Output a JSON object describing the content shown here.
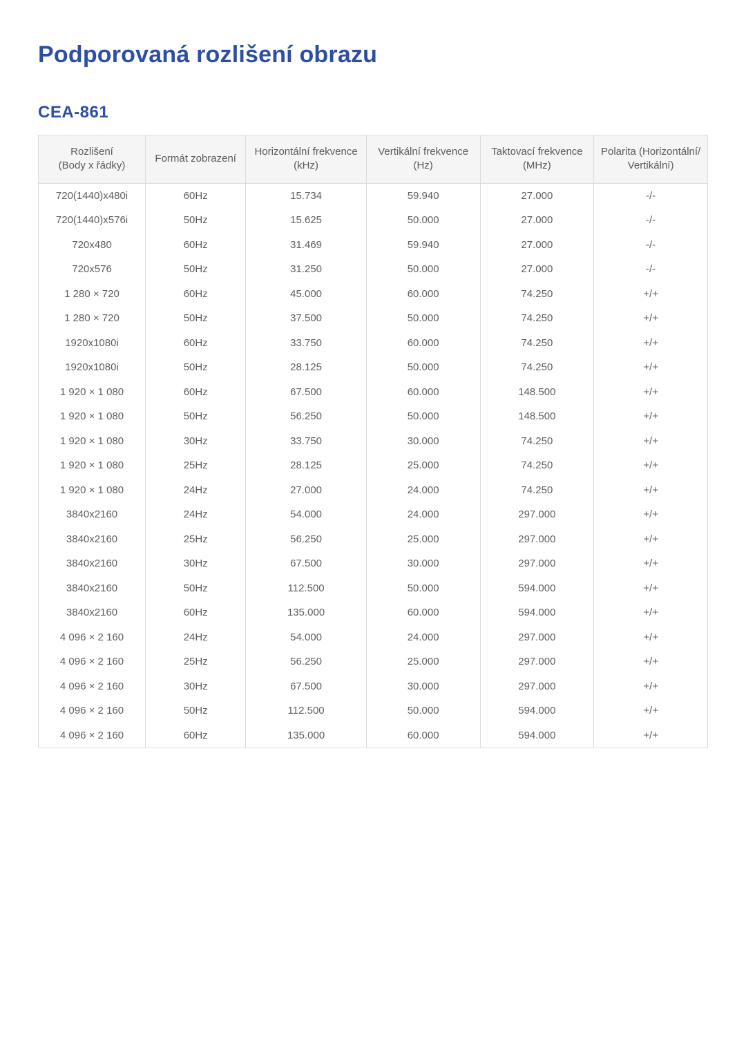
{
  "colors": {
    "heading": "#2d4fa3",
    "body_text": "#5f5f5f",
    "header_bg": "#f5f5f5",
    "border": "#dcdcdc",
    "page_bg": "#ffffff"
  },
  "typography": {
    "title_fontsize_pt": 26,
    "subtitle_fontsize_pt": 18,
    "table_fontsize_pt": 11,
    "font_family": "Arial"
  },
  "title": "Podporovaná rozlišení obrazu",
  "subtitle": "CEA-861",
  "table": {
    "type": "table",
    "column_widths_pct": [
      16,
      15,
      18,
      17,
      17,
      17
    ],
    "columns": [
      {
        "line1": "Rozlišení",
        "line2": "(Body x řádky)"
      },
      {
        "line1": "Formát zobrazení",
        "line2": ""
      },
      {
        "line1": "Horizontální frekvence",
        "line2": "(kHz)"
      },
      {
        "line1": "Vertikální frekvence",
        "line2": "(Hz)"
      },
      {
        "line1": "Taktovací frekvence",
        "line2": "(MHz)"
      },
      {
        "line1": "Polarita (Horizontální/",
        "line2": "Vertikální)"
      }
    ],
    "rows": [
      [
        "720(1440)x480i",
        "60Hz",
        "15.734",
        "59.940",
        "27.000",
        "-/-"
      ],
      [
        "720(1440)x576i",
        "50Hz",
        "15.625",
        "50.000",
        "27.000",
        "-/-"
      ],
      [
        "720x480",
        "60Hz",
        "31.469",
        "59.940",
        "27.000",
        "-/-"
      ],
      [
        "720x576",
        "50Hz",
        "31.250",
        "50.000",
        "27.000",
        "-/-"
      ],
      [
        "1 280 × 720",
        "60Hz",
        "45.000",
        "60.000",
        "74.250",
        "+/+"
      ],
      [
        "1 280 × 720",
        "50Hz",
        "37.500",
        "50.000",
        "74.250",
        "+/+"
      ],
      [
        "1920x1080i",
        "60Hz",
        "33.750",
        "60.000",
        "74.250",
        "+/+"
      ],
      [
        "1920x1080i",
        "50Hz",
        "28.125",
        "50.000",
        "74.250",
        "+/+"
      ],
      [
        "1 920 × 1 080",
        "60Hz",
        "67.500",
        "60.000",
        "148.500",
        "+/+"
      ],
      [
        "1 920 × 1 080",
        "50Hz",
        "56.250",
        "50.000",
        "148.500",
        "+/+"
      ],
      [
        "1 920 × 1 080",
        "30Hz",
        "33.750",
        "30.000",
        "74.250",
        "+/+"
      ],
      [
        "1 920 × 1 080",
        "25Hz",
        "28.125",
        "25.000",
        "74.250",
        "+/+"
      ],
      [
        "1 920 × 1 080",
        "24Hz",
        "27.000",
        "24.000",
        "74.250",
        "+/+"
      ],
      [
        "3840x2160",
        "24Hz",
        "54.000",
        "24.000",
        "297.000",
        "+/+"
      ],
      [
        "3840x2160",
        "25Hz",
        "56.250",
        "25.000",
        "297.000",
        "+/+"
      ],
      [
        "3840x2160",
        "30Hz",
        "67.500",
        "30.000",
        "297.000",
        "+/+"
      ],
      [
        "3840x2160",
        "50Hz",
        "112.500",
        "50.000",
        "594.000",
        "+/+"
      ],
      [
        "3840x2160",
        "60Hz",
        "135.000",
        "60.000",
        "594.000",
        "+/+"
      ],
      [
        "4 096 × 2 160",
        "24Hz",
        "54.000",
        "24.000",
        "297.000",
        "+/+"
      ],
      [
        "4 096 × 2 160",
        "25Hz",
        "56.250",
        "25.000",
        "297.000",
        "+/+"
      ],
      [
        "4 096 × 2 160",
        "30Hz",
        "67.500",
        "30.000",
        "297.000",
        "+/+"
      ],
      [
        "4 096 × 2 160",
        "50Hz",
        "112.500",
        "50.000",
        "594.000",
        "+/+"
      ],
      [
        "4 096 × 2 160",
        "60Hz",
        "135.000",
        "60.000",
        "594.000",
        "+/+"
      ]
    ]
  }
}
